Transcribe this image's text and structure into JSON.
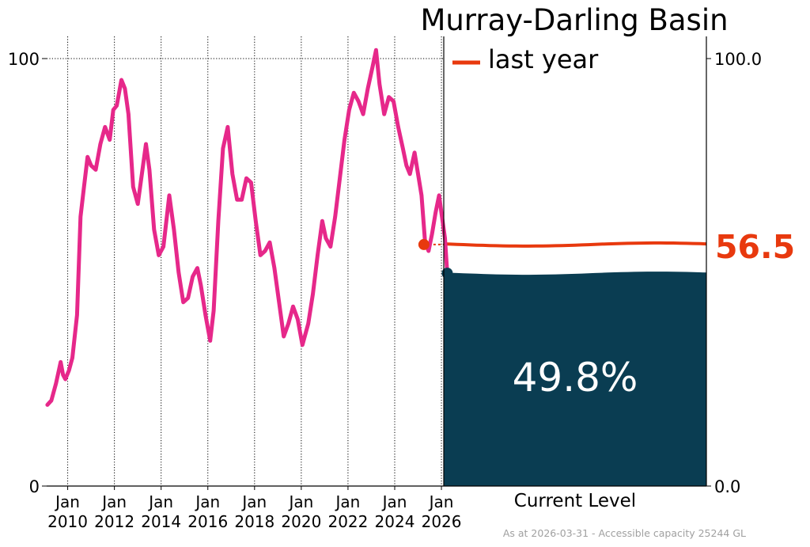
{
  "chart_data": {
    "type": "line",
    "title": "Murray-Darling Basin",
    "ylim": [
      0,
      100
    ],
    "xlim": [
      2009.1,
      2026.1
    ],
    "grid": "vertical dotted at Jan of even years, horizontal dotted at 100",
    "x_ticks": [
      {
        "year": 2010,
        "label_top": "Jan",
        "label_bottom": "2010"
      },
      {
        "year": 2012,
        "label_top": "Jan",
        "label_bottom": "2012"
      },
      {
        "year": 2014,
        "label_top": "Jan",
        "label_bottom": "2014"
      },
      {
        "year": 2016,
        "label_top": "Jan",
        "label_bottom": "2016"
      },
      {
        "year": 2018,
        "label_top": "Jan",
        "label_bottom": "2018"
      },
      {
        "year": 2020,
        "label_top": "Jan",
        "label_bottom": "2020"
      },
      {
        "year": 2022,
        "label_top": "Jan",
        "label_bottom": "2022"
      },
      {
        "year": 2024,
        "label_top": "Jan",
        "label_bottom": "2024"
      },
      {
        "year": 2026,
        "label_top": "Jan",
        "label_bottom": "2026"
      }
    ],
    "left_y_ticks": [
      {
        "value": 0,
        "label": "0"
      },
      {
        "value": 100,
        "label": "100"
      }
    ],
    "right_y_ticks": [
      {
        "value": 0,
        "label": "0.0"
      },
      {
        "value": 100,
        "label": "100.0"
      }
    ],
    "series": [
      {
        "role": "storage-history",
        "color": "#e6288a",
        "points": [
          [
            2009.13,
            19
          ],
          [
            2009.3,
            20
          ],
          [
            2009.5,
            24
          ],
          [
            2009.7,
            29
          ],
          [
            2009.8,
            26
          ],
          [
            2009.9,
            25
          ],
          [
            2010.05,
            27
          ],
          [
            2010.2,
            30
          ],
          [
            2010.4,
            40
          ],
          [
            2010.55,
            63
          ],
          [
            2010.7,
            70
          ],
          [
            2010.85,
            77
          ],
          [
            2011.0,
            75
          ],
          [
            2011.2,
            74
          ],
          [
            2011.4,
            80
          ],
          [
            2011.6,
            84
          ],
          [
            2011.8,
            81
          ],
          [
            2011.95,
            88
          ],
          [
            2012.1,
            89
          ],
          [
            2012.3,
            95
          ],
          [
            2012.45,
            93
          ],
          [
            2012.6,
            87
          ],
          [
            2012.8,
            70
          ],
          [
            2013.0,
            66
          ],
          [
            2013.2,
            74
          ],
          [
            2013.35,
            80
          ],
          [
            2013.5,
            74
          ],
          [
            2013.7,
            60
          ],
          [
            2013.9,
            54
          ],
          [
            2014.1,
            56
          ],
          [
            2014.35,
            68
          ],
          [
            2014.55,
            60
          ],
          [
            2014.75,
            50
          ],
          [
            2014.95,
            43
          ],
          [
            2015.15,
            44
          ],
          [
            2015.35,
            49
          ],
          [
            2015.55,
            51
          ],
          [
            2015.7,
            47
          ],
          [
            2015.9,
            40
          ],
          [
            2016.1,
            34
          ],
          [
            2016.25,
            41
          ],
          [
            2016.45,
            62
          ],
          [
            2016.65,
            79
          ],
          [
            2016.85,
            84
          ],
          [
            2017.05,
            73
          ],
          [
            2017.25,
            67
          ],
          [
            2017.45,
            67
          ],
          [
            2017.65,
            72
          ],
          [
            2017.85,
            71
          ],
          [
            2018.05,
            62
          ],
          [
            2018.25,
            54
          ],
          [
            2018.45,
            55
          ],
          [
            2018.65,
            57
          ],
          [
            2018.85,
            51
          ],
          [
            2019.05,
            43
          ],
          [
            2019.25,
            35
          ],
          [
            2019.45,
            38
          ],
          [
            2019.65,
            42
          ],
          [
            2019.85,
            39
          ],
          [
            2020.05,
            33
          ],
          [
            2020.3,
            38
          ],
          [
            2020.5,
            45
          ],
          [
            2020.7,
            54
          ],
          [
            2020.9,
            62
          ],
          [
            2021.05,
            58
          ],
          [
            2021.25,
            56
          ],
          [
            2021.45,
            63
          ],
          [
            2021.65,
            72
          ],
          [
            2021.85,
            81
          ],
          [
            2022.05,
            88
          ],
          [
            2022.25,
            92
          ],
          [
            2022.45,
            90
          ],
          [
            2022.65,
            87
          ],
          [
            2022.85,
            93
          ],
          [
            2023.05,
            98
          ],
          [
            2023.2,
            102
          ],
          [
            2023.35,
            94
          ],
          [
            2023.55,
            87
          ],
          [
            2023.75,
            91
          ],
          [
            2023.95,
            90
          ],
          [
            2024.15,
            84
          ],
          [
            2024.35,
            79
          ],
          [
            2024.5,
            75
          ],
          [
            2024.65,
            73
          ],
          [
            2024.85,
            78
          ],
          [
            2025.0,
            73
          ],
          [
            2025.15,
            68
          ],
          [
            2025.3,
            57
          ],
          [
            2025.45,
            55
          ],
          [
            2025.6,
            59
          ],
          [
            2025.75,
            64
          ],
          [
            2025.9,
            68
          ],
          [
            2026.0,
            64
          ],
          [
            2026.15,
            58
          ],
          [
            2026.25,
            49.8
          ]
        ]
      }
    ],
    "last_year_marker": {
      "x": 2025.25,
      "value": 56.5,
      "color": "#e8390e"
    },
    "current_marker": {
      "x": 2026.25,
      "value": 49.8,
      "color": "#0a3d52"
    },
    "current_level": {
      "value": 49.8,
      "label": "49.8%",
      "axis_label": "Current Level",
      "fill_color": "#0a3d52"
    },
    "last_year": {
      "value": 56.5,
      "label": "56.5",
      "legend_label": "last year",
      "color": "#e8390e"
    },
    "footnote": "As at 2026-03-31 - Accessible capacity 25244 GL"
  }
}
